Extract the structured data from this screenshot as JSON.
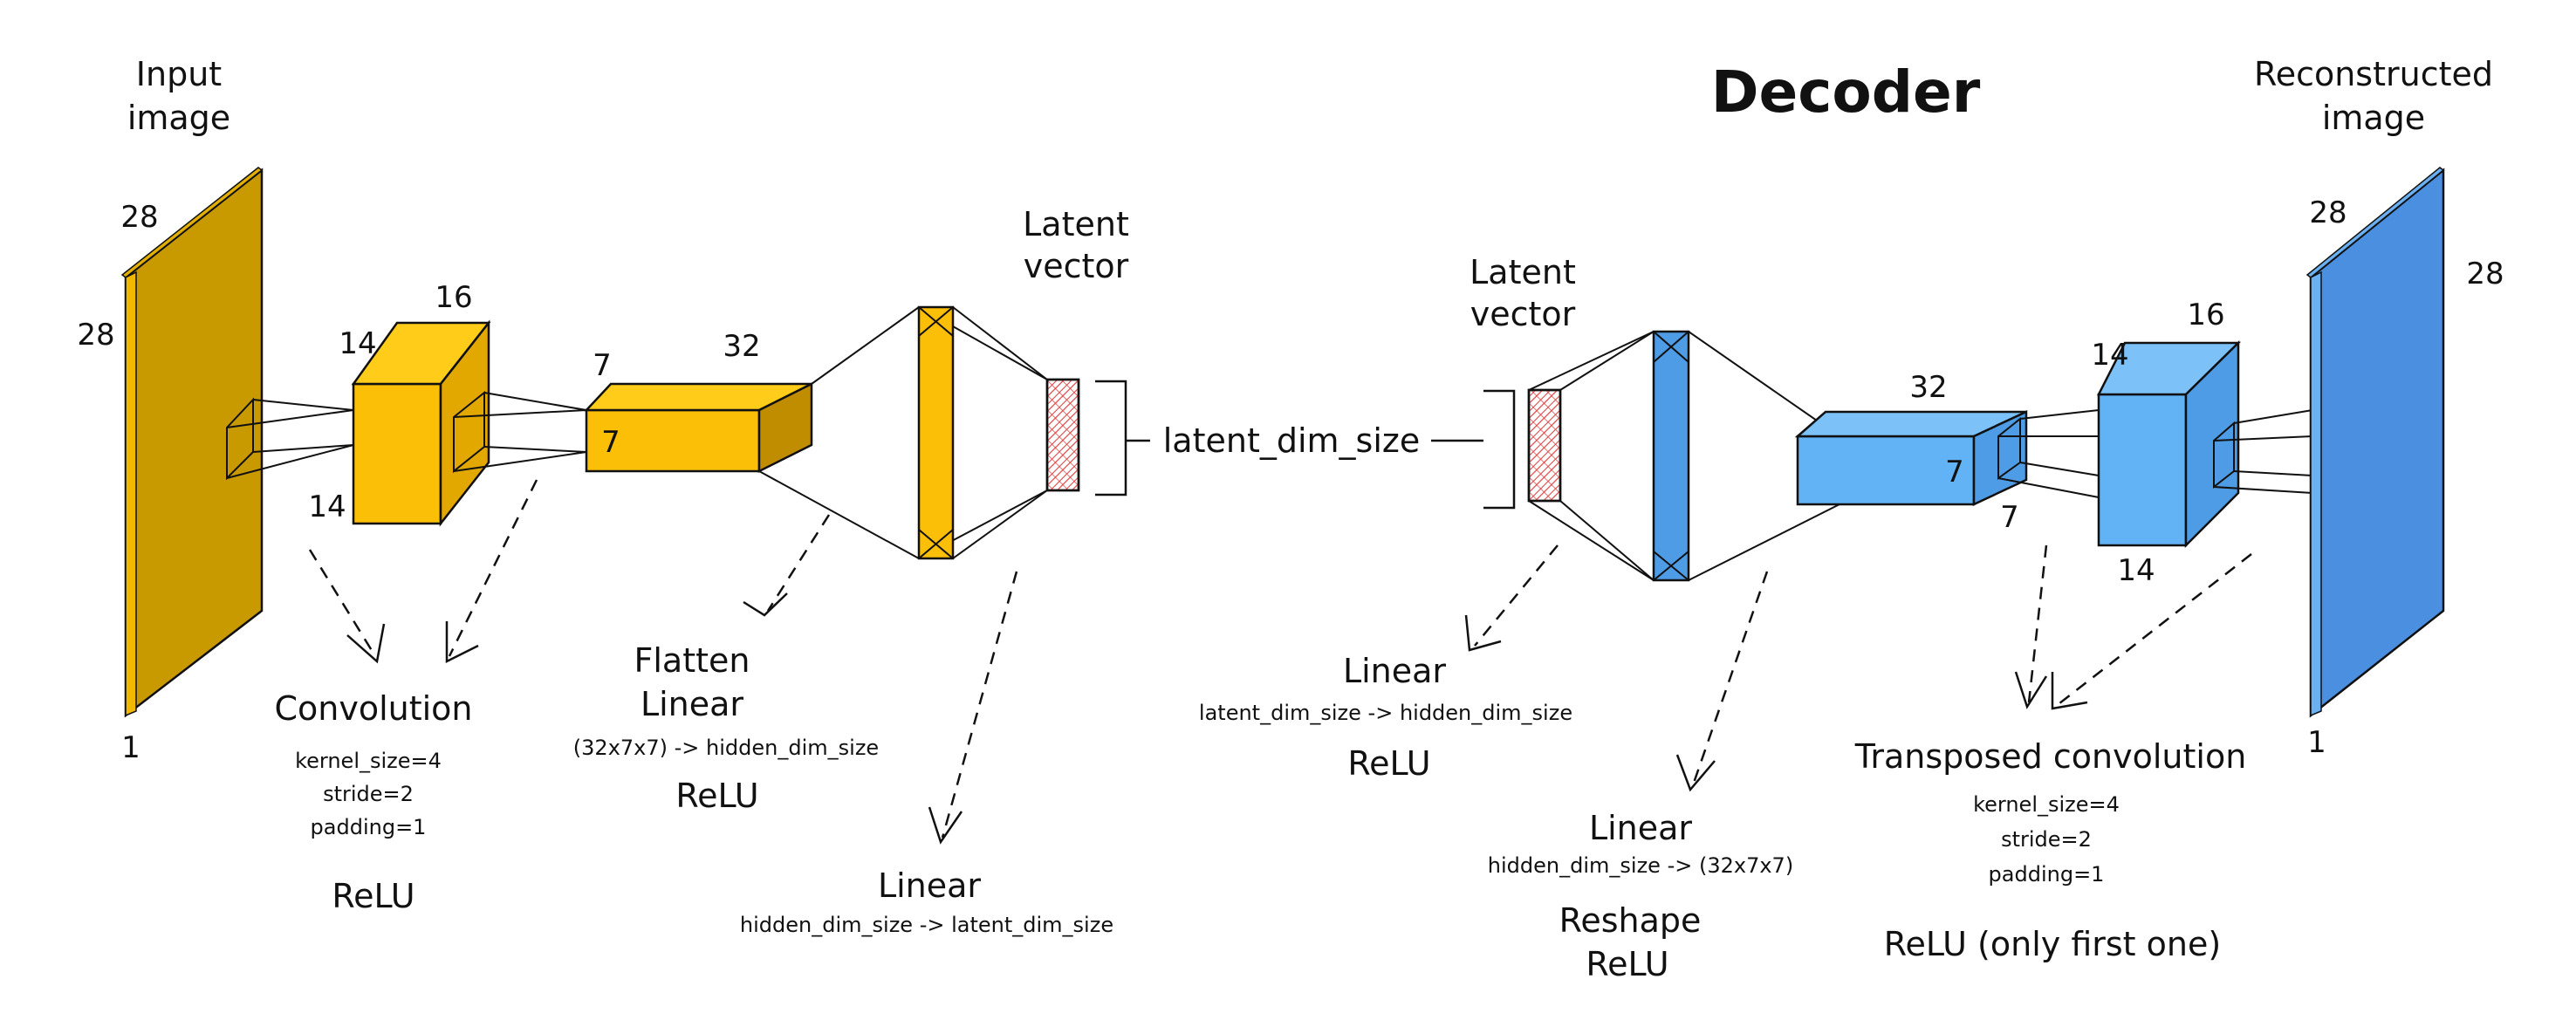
{
  "title": "Decoder",
  "colors": {
    "encoder_face": "#c89a00",
    "encoder_box": "#fbbf07",
    "encoder_box_side": "#e3a800",
    "encoder_box_dark": "#c08d00",
    "decoder_face": "#4a8fe0",
    "decoder_box": "#62b3f5",
    "decoder_box_side": "#4f9ce6",
    "latent_hatch": "#e04040",
    "ink": "#111111"
  },
  "encoder": {
    "input_label_1": "Input",
    "input_label_2": "image",
    "input_dims": {
      "top": "28",
      "left": "28",
      "channels": "1"
    },
    "conv1_dims": {
      "top": "16",
      "left": "14",
      "bottom": "14"
    },
    "conv2_dims": {
      "left": "7",
      "top": "32",
      "front": "7"
    },
    "latent_label_1": "Latent",
    "latent_label_2": "vector",
    "conv_caption": "Convolution",
    "conv_kernel": "kernel_size=4",
    "conv_stride": "stride=2",
    "conv_padding": "padding=1",
    "conv_relu": "ReLU",
    "flatten": "Flatten",
    "linear1": "Linear",
    "linear1_detail": "(32x7x7) -> hidden_dim_size",
    "linear1_relu": "ReLU",
    "linear2": "Linear",
    "linear2_detail": "hidden_dim_size -> latent_dim_size"
  },
  "latent_dim_label": "latent_dim_size",
  "decoder": {
    "latent_label_1": "Latent",
    "latent_label_2": "vector",
    "linear1": "Linear",
    "linear1_detail": "latent_dim_size -> hidden_dim_size",
    "linear1_relu": "ReLU",
    "linear2": "Linear",
    "linear2_detail": "hidden_dim_size -> (32x7x7)",
    "reshape": "Reshape",
    "reshape_relu": "ReLU",
    "box32_dims": {
      "top": "32",
      "front": "7",
      "bottom": "7"
    },
    "box16_dims": {
      "left": "14",
      "top": "16",
      "bottom": "14"
    },
    "output_label_1": "Reconstructed",
    "output_label_2": "image",
    "output_dims": {
      "left": "28",
      "right": "28",
      "channels": "1"
    },
    "tconv_caption": "Transposed convolution",
    "tconv_kernel": "kernel_size=4",
    "tconv_stride": "stride=2",
    "tconv_padding": "padding=1",
    "tconv_relu": "ReLU (only first one)"
  }
}
